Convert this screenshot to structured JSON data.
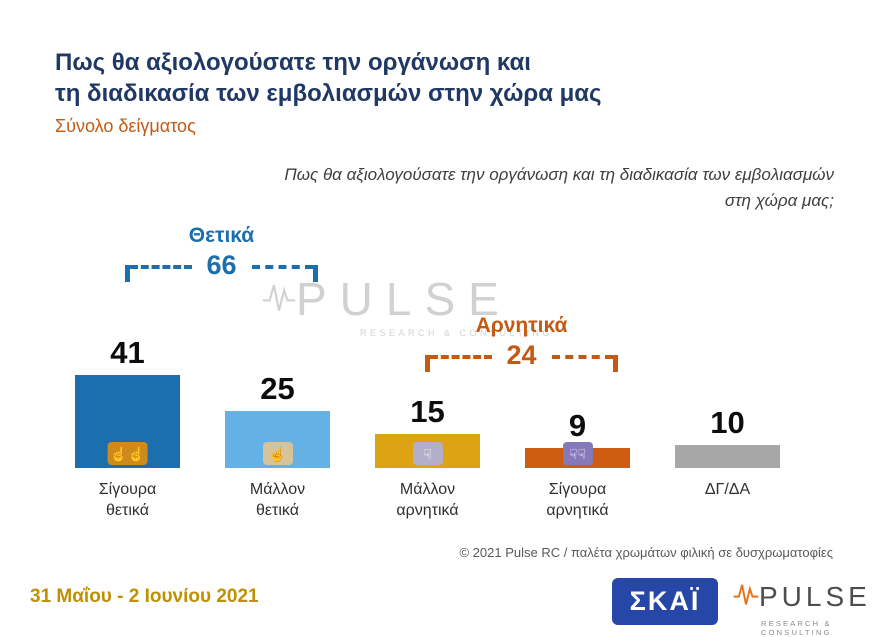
{
  "header": {
    "title": "Πως θα αξιολογούσατε την οργάνωση και\nτη διαδικασία των εμβολιασμών στην χώρα μας",
    "subtitle": "Σύνολο δείγματος"
  },
  "question": "Πως θα αξιολογούσατε την οργάνωση και τη διαδικασία των εμβολιασμών\nστη χώρα μας;",
  "chart_data": {
    "type": "bar",
    "title": "Πως θα αξιολογούσατε την οργάνωση και τη διαδικασία των εμβολιασμών στη χώρα μας;",
    "categories": [
      "Σίγουρα\nθετικά",
      "Μάλλον\nθετικά",
      "Μάλλον\nαρνητικά",
      "Σίγουρα\nαρνητικά",
      "ΔΓ/ΔΑ"
    ],
    "values": [
      41,
      25,
      15,
      9,
      10
    ],
    "colors": [
      "#1c6fad",
      "#63b1e5",
      "#dca414",
      "#ce5d12",
      "#a7a7a7"
    ],
    "ylim": [
      0,
      45
    ],
    "grid": false,
    "icons": [
      {
        "name": "double-thumbs-up-icon",
        "glyph": "☝☝",
        "bg": "#cf8a1e"
      },
      {
        "name": "thumbs-up-icon",
        "glyph": "☝",
        "bg": "#d6c39a"
      },
      {
        "name": "thumbs-down-icon",
        "glyph": "☟",
        "bg": "#b3aec9"
      },
      {
        "name": "double-thumbs-down-icon",
        "glyph": "☟☟",
        "bg": "#8679b9"
      },
      null
    ],
    "groups": [
      {
        "label": "Θετικά",
        "value": 66,
        "color": "#1c6fad",
        "spans": [
          0,
          1
        ]
      },
      {
        "label": "Αρνητικά",
        "value": 24,
        "color": "#c45911",
        "spans": [
          2,
          3
        ]
      }
    ]
  },
  "watermark": {
    "brand": "PULSE",
    "sub": "RESEARCH & CONSULTING"
  },
  "footer": {
    "note": "© 2021 Pulse RC   /   παλέτα χρωμάτων φιλική σε δυσχρωματοφίες",
    "date_range": "31 Μαΐου - 2 Ιουνίου 2021"
  },
  "logos": {
    "skai": "ΣΚΑΪ",
    "pulse": "PULSE",
    "pulse_sub": "RESEARCH & CONSULTING"
  }
}
